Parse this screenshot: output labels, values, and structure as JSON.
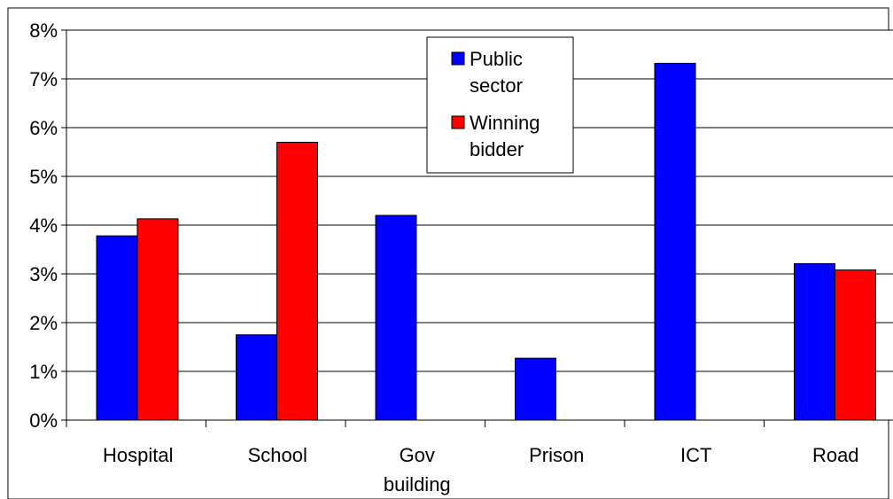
{
  "chart_data": {
    "type": "bar",
    "title": "",
    "xlabel": "",
    "ylabel": "",
    "categories": [
      [
        "Hospital"
      ],
      [
        "School"
      ],
      [
        "Gov",
        "building"
      ],
      [
        "Prison"
      ],
      [
        "ICT"
      ],
      [
        "Road"
      ]
    ],
    "series": [
      {
        "name": [
          "Public",
          "sector"
        ],
        "color": "#0000ff",
        "values": [
          3.78,
          1.75,
          4.2,
          1.27,
          7.32,
          3.21
        ]
      },
      {
        "name": [
          "Winning",
          "bidder"
        ],
        "color": "#ff0000",
        "values": [
          4.13,
          5.7,
          null,
          null,
          null,
          3.08
        ]
      }
    ],
    "ylim": [
      0,
      8
    ],
    "yticks": [
      "0%",
      "1%",
      "2%",
      "3%",
      "4%",
      "5%",
      "6%",
      "7%",
      "8%"
    ],
    "grid": true,
    "legend": "top-center"
  }
}
